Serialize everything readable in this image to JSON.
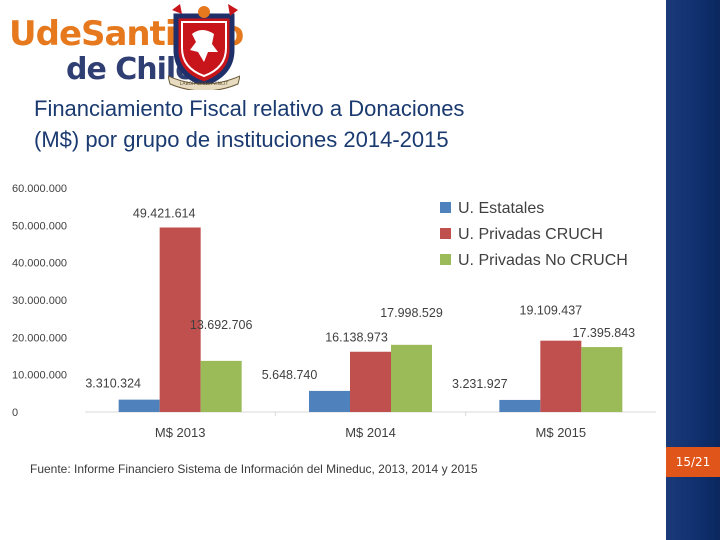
{
  "logo": {
    "line1": "UdeSantiago",
    "line2": "de Chile",
    "seal_ribbon": "LABOR OMNIA VINCIT"
  },
  "slide": {
    "title_line1": "Financiamiento Fiscal relativo a Donaciones",
    "title_line2": "(M$) por grupo de instituciones 2014-2015",
    "source": "Fuente: Informe Financiero Sistema de Información del Mineduc, 2013, 2014 y 2015",
    "page": "15/21"
  },
  "colors": {
    "estatales": "#4f81bd",
    "privadas_cruch": "#c0504d",
    "privadas_no_cruch": "#9bbb59",
    "title": "#1a3a70",
    "bar_accent": "#e0551a"
  },
  "chart_data": {
    "type": "bar",
    "title": "",
    "xlabel": "",
    "ylabel": "",
    "categories": [
      "M$ 2013",
      "M$ 2014",
      "M$ 2015"
    ],
    "ylim": [
      0,
      60000000
    ],
    "yticks": [
      0,
      10000000,
      20000000,
      30000000,
      40000000,
      50000000,
      60000000
    ],
    "ytick_labels": [
      "0",
      "10.000.000",
      "20.000.000",
      "30.000.000",
      "40.000.000",
      "50.000.000",
      "60.000.000"
    ],
    "legend_position": "top-right",
    "series": [
      {
        "name": "U. Estatales",
        "color": "#4f81bd",
        "values": [
          3310324,
          5648740,
          3231927
        ],
        "labels": [
          "3.310.324",
          "5.648.740",
          "3.231.927"
        ]
      },
      {
        "name": "U. Privadas CRUCH",
        "color": "#c0504d",
        "values": [
          49421614,
          16138973,
          19109437
        ],
        "labels": [
          "49.421.614",
          "16.138.973",
          "19.109.437"
        ]
      },
      {
        "name": "U. Privadas No CRUCH",
        "color": "#9bbb59",
        "values": [
          13692706,
          17998529,
          17395843
        ],
        "labels": [
          "13.692.706",
          "17.998.529",
          "17.395.843"
        ]
      }
    ]
  }
}
